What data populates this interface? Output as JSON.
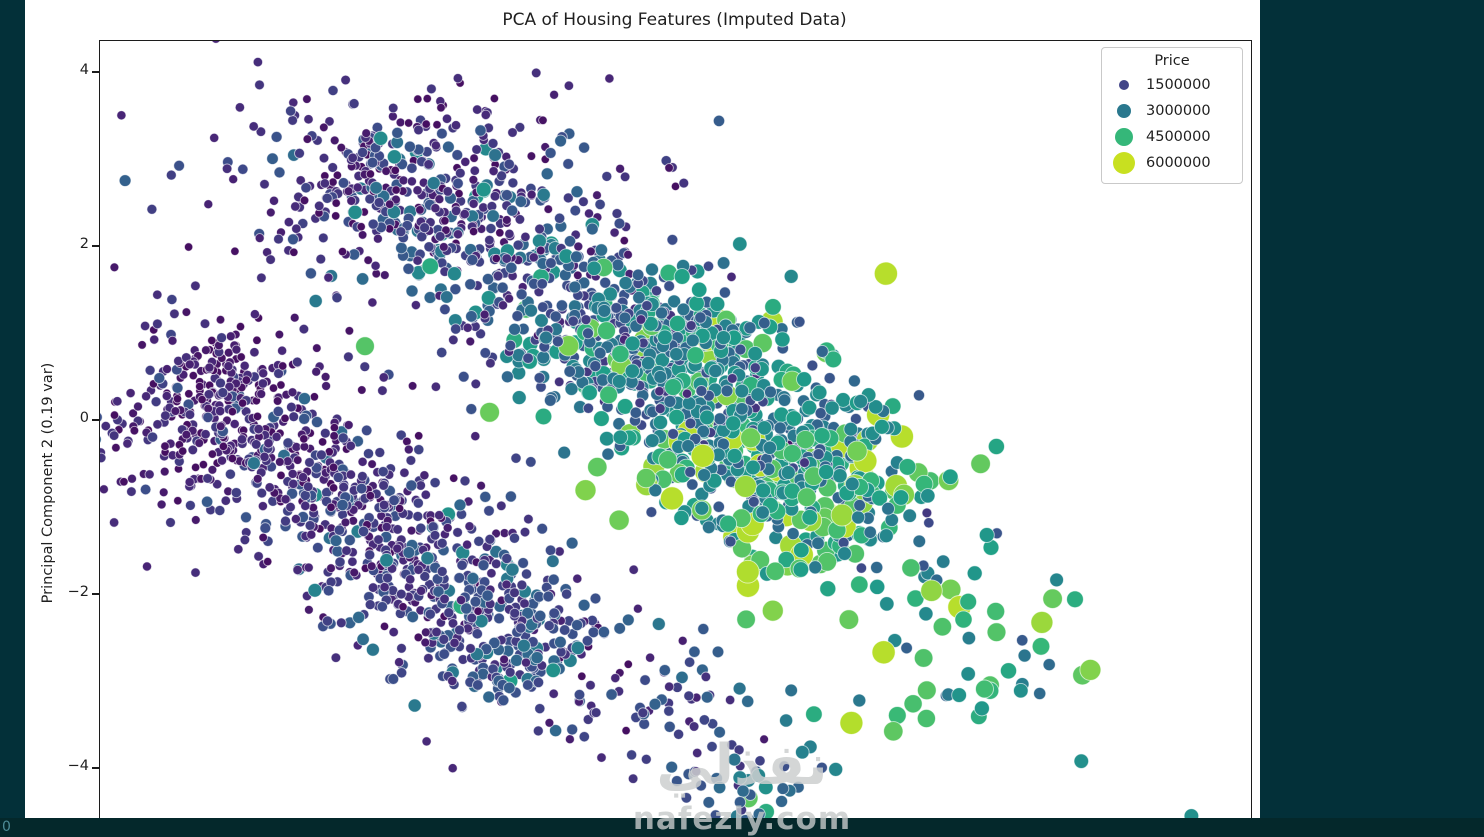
{
  "chart_data": {
    "type": "scatter",
    "title": "PCA of Housing Features (Imputed Data)",
    "ylabel": "Principal Component 2 (0.19 var)",
    "y_axis": {
      "tick_labels": [
        "4",
        "2",
        "0",
        "−2",
        "−4"
      ],
      "tick_values": [
        4,
        2,
        0,
        -2,
        -4
      ]
    },
    "layout_hints": {
      "x_ticks_visible": false,
      "bottom_edge_cropped": true,
      "grid": false,
      "legend_position": "upper right"
    },
    "legend": {
      "title": "Price",
      "entries": [
        {
          "label": "1500000",
          "color": "#414487",
          "diameter": 10
        },
        {
          "label": "3000000",
          "color": "#2a788e",
          "diameter": 14
        },
        {
          "label": "4500000",
          "color": "#35b779",
          "diameter": 18
        },
        {
          "label": "6000000",
          "color": "#c8e020",
          "diameter": 22
        }
      ]
    },
    "colormap": {
      "name": "viridis",
      "stops": [
        "#440154",
        "#482878",
        "#3e4a89",
        "#31688e",
        "#26828e",
        "#1f9e89",
        "#35b779",
        "#6dcd59",
        "#b4de2c",
        "#fde725"
      ],
      "price_t_anchors": [
        [
          750000,
          0.04
        ],
        [
          1500000,
          0.22
        ],
        [
          3000000,
          0.5
        ],
        [
          4500000,
          0.72
        ],
        [
          6000000,
          0.87
        ],
        [
          6500000,
          0.93
        ]
      ]
    },
    "distribution": {
      "seed": 42,
      "price_clamp": [
        750000,
        6200000
      ],
      "boost_chance": 0.055,
      "boost_factor": 1.55,
      "clusters": [
        {
          "kind": "band",
          "count": 1050,
          "from": [
            -3.0,
            3.05
          ],
          "to": [
            1.05,
            -0.65
          ],
          "across": 0.52,
          "price_min": 1000000,
          "price_max": 2700000,
          "noise": 0.3
        },
        {
          "kind": "band",
          "count": 430,
          "from": [
            -1.05,
            1.25
          ],
          "to": [
            1.45,
            -1.35
          ],
          "across": 0.5,
          "price_min": 2100000,
          "price_max": 3900000,
          "noise": 0.33
        },
        {
          "kind": "band",
          "count": 1080,
          "from": [
            -4.35,
            0.7
          ],
          "to": [
            -1.25,
            -2.9
          ],
          "across": 0.44,
          "price_min": 850000,
          "price_max": 1550000,
          "noise": 0.26
        },
        {
          "kind": "blob",
          "count": 160,
          "center": [
            -2.3,
            2.95
          ],
          "sx": 1.05,
          "sy": 0.62,
          "price_min": 850000,
          "price_max": 1250000,
          "noise": 0.22
        },
        {
          "kind": "blob",
          "count": 85,
          "center": [
            -4.35,
            0.1
          ],
          "sx": 0.38,
          "sy": 0.75,
          "price_min": 800000,
          "price_max": 1150000,
          "noise": 0.2
        },
        {
          "kind": "band",
          "count": 80,
          "from": [
            0.9,
            -0.6
          ],
          "to": [
            2.6,
            -3.3
          ],
          "across": 0.5,
          "price_min": 2300000,
          "price_max": 4000000,
          "noise": 0.35
        },
        {
          "kind": "band",
          "count": 125,
          "from": [
            -0.95,
            -2.85
          ],
          "to": [
            0.6,
            -4.55
          ],
          "across": 0.48,
          "price_min": 1100000,
          "price_max": 2200000,
          "noise": 0.3
        }
      ],
      "outliers": [
        {
          "x": 1.21,
          "y": -3.47,
          "price": 6150000
        },
        {
          "x": 0.56,
          "y": -2.18,
          "price": 5400000
        },
        {
          "x": 0.34,
          "y": -2.28,
          "price": 4500000
        },
        {
          "x": 1.72,
          "y": -3.25,
          "price": 4400000
        },
        {
          "x": 1.83,
          "y": -3.42,
          "price": 4400000
        },
        {
          "x": 2.31,
          "y": -3.08,
          "price": 4300000
        },
        {
          "x": 2.1,
          "y": -3.15,
          "price": 3100000
        },
        {
          "x": 2.61,
          "y": -3.1,
          "price": 3000000
        },
        {
          "x": 1.85,
          "y": -1.17,
          "price": 1500000
        },
        {
          "x": 4.02,
          "y": -4.54,
          "price": 3000000
        },
        {
          "x": 3.11,
          "y": -3.91,
          "price": 3000000
        },
        {
          "x": -2.68,
          "y": 3.25,
          "price": 2900000
        },
        {
          "x": -2.97,
          "y": 3.92,
          "price": 1150000
        },
        {
          "x": -2.81,
          "y": 0.86,
          "price": 4600000
        },
        {
          "x": -1.78,
          "y": 0.1,
          "price": 5000000
        },
        {
          "x": -0.89,
          "y": -0.53,
          "price": 4800000
        },
        {
          "x": -0.71,
          "y": -1.14,
          "price": 5100000
        }
      ]
    }
  },
  "watermark": {
    "line1": "نفذلي",
    "line2": "nafezly.com"
  },
  "corner_text": "0",
  "colors": {
    "page_background": "#033039",
    "bottom_strip": "#04282b",
    "figure_background": "#ffffff"
  }
}
